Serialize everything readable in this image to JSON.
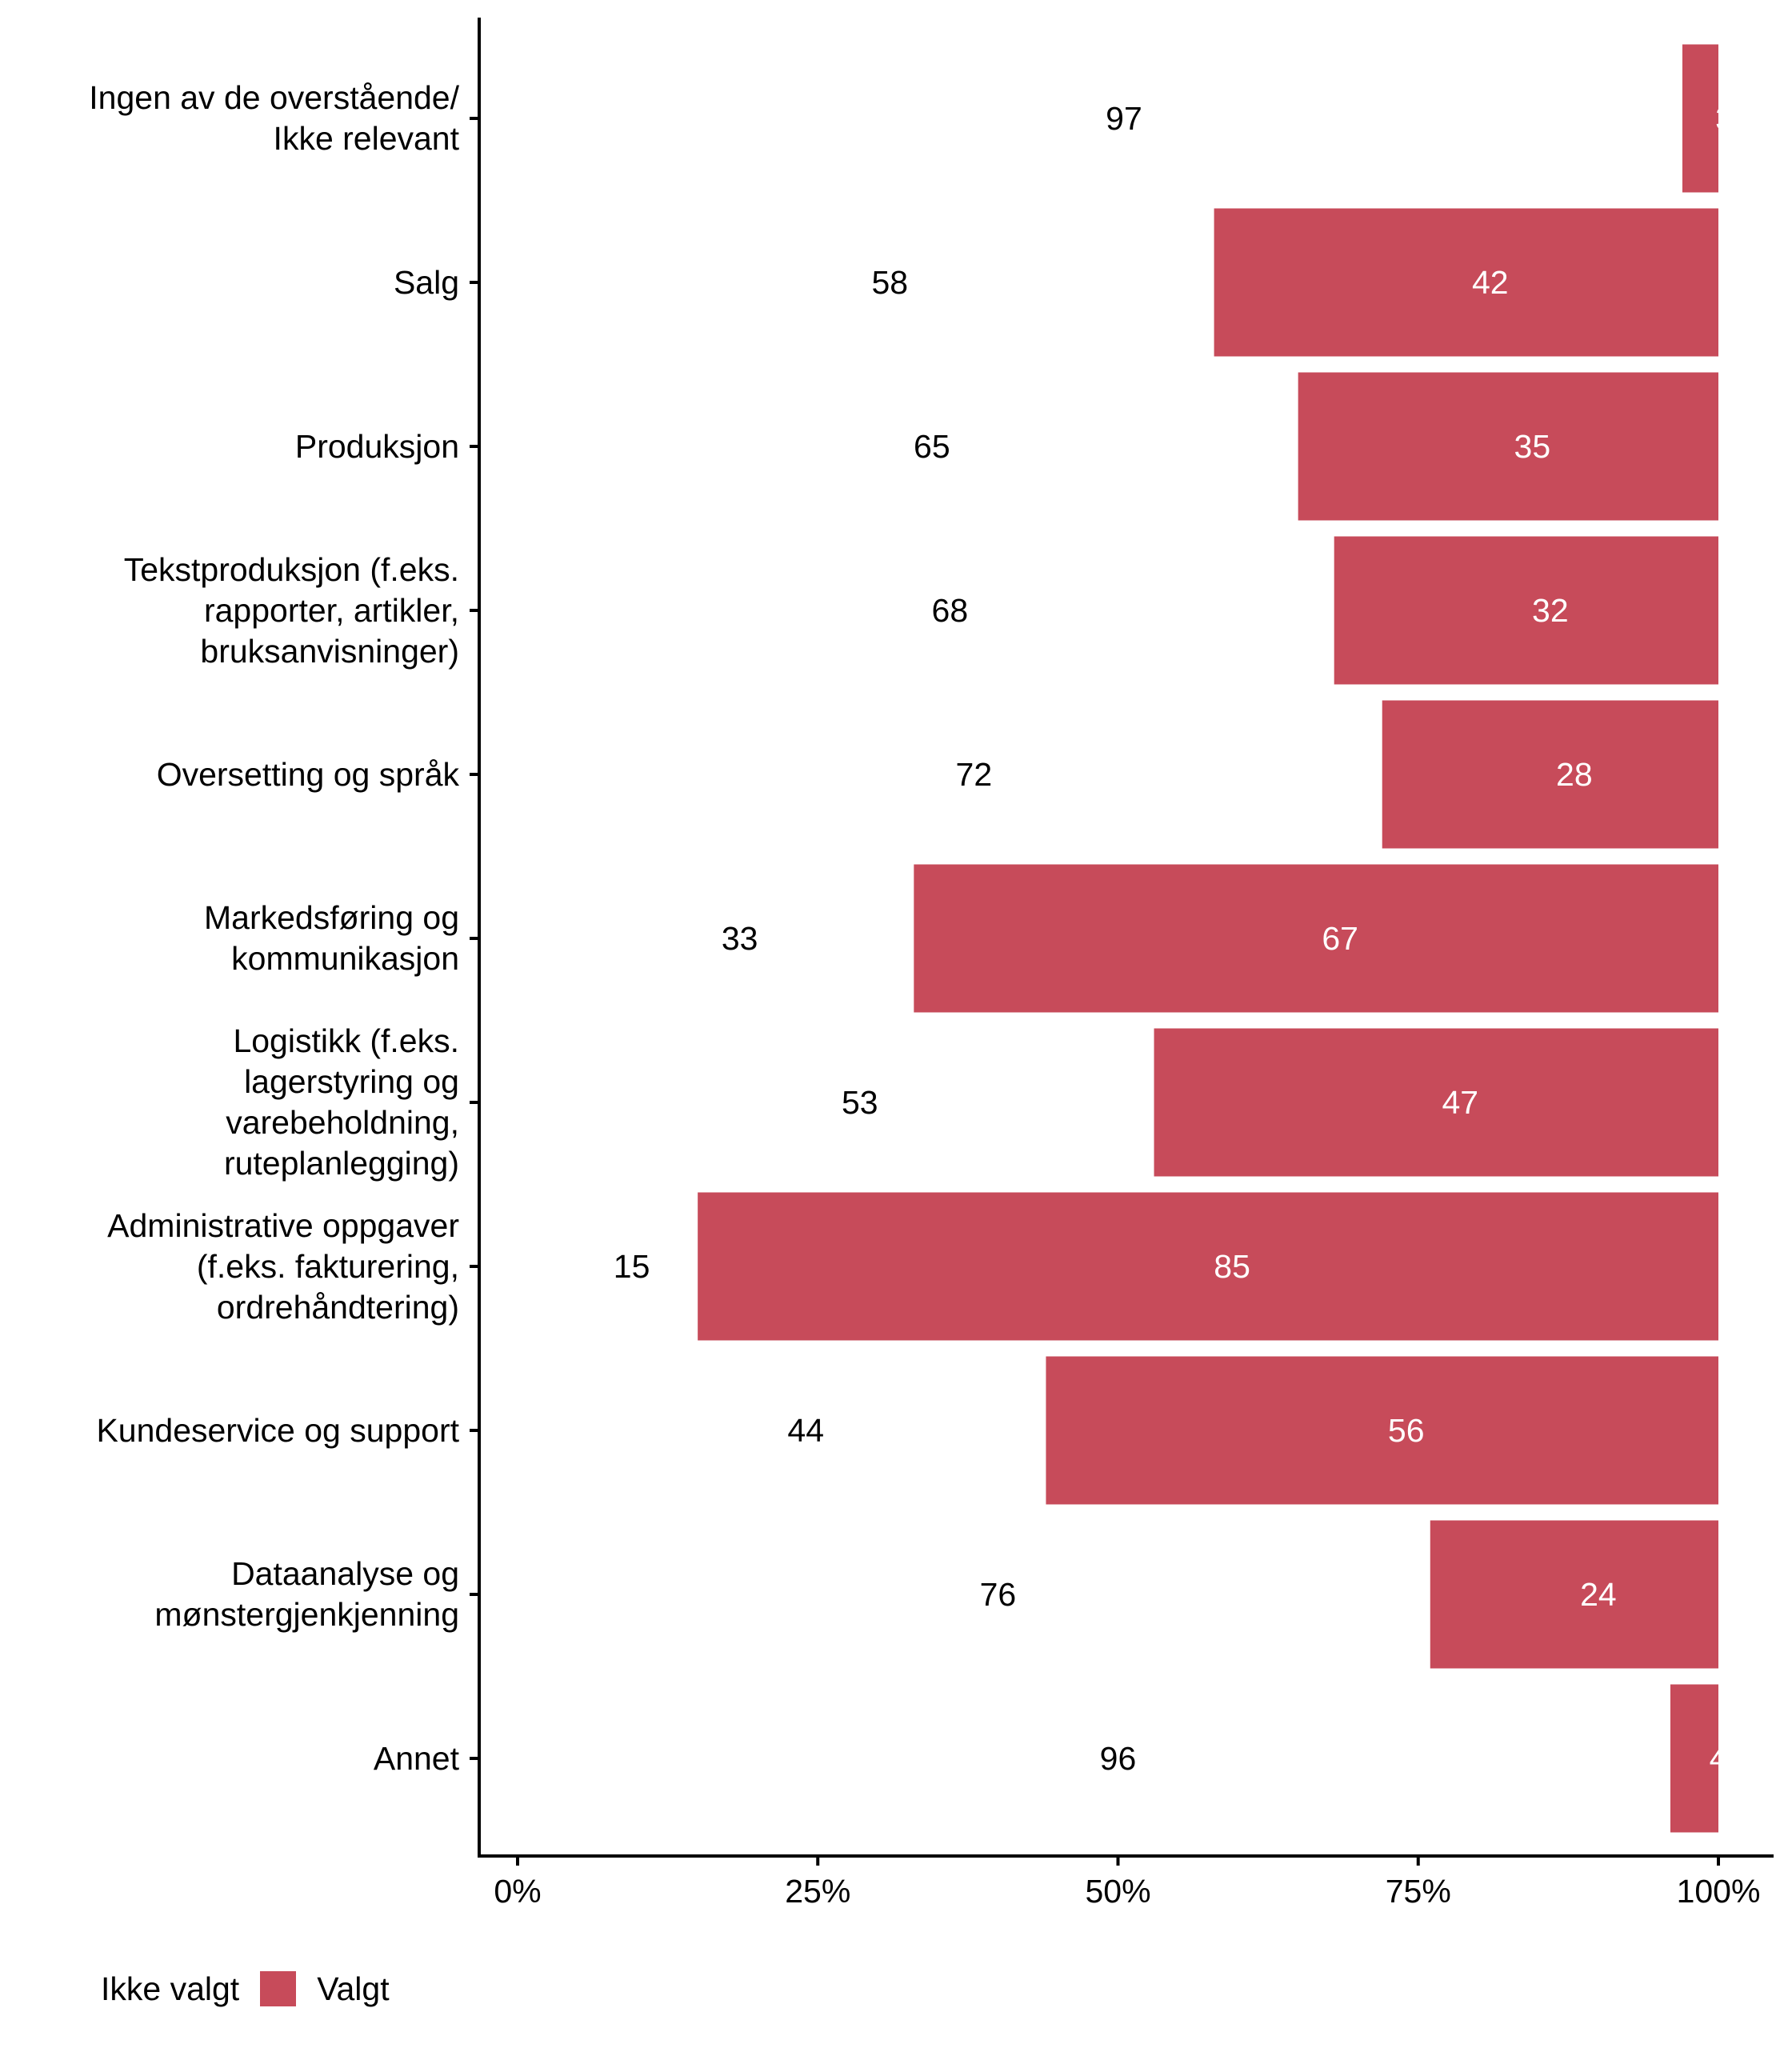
{
  "chart_data": {
    "type": "bar",
    "orientation": "horizontal",
    "stacked": "fill",
    "title": "",
    "xlabel": "",
    "ylabel": "",
    "xlim": [
      0,
      100
    ],
    "grid": false,
    "legend_position": "bottom-left",
    "x_ticks": [
      "0%",
      "25%",
      "50%",
      "75%",
      "100%"
    ],
    "x_tick_values": [
      0,
      25,
      50,
      75,
      100
    ],
    "categories": [
      "Ingen av de overstående/\nIkke relevant",
      "Salg",
      "Produksjon",
      "Tekstproduksjon (f.eks.\nrapporter, artikler,\nbruksanvisninger)",
      "Oversetting og språk",
      "Markedsføring og\nkommunikasjon",
      "Logistikk (f.eks.\nlagerstyring og\nvarebeholdning,\nruteplanlegging)",
      "Administrative oppgaver\n(f.eks. fakturering,\nordrehåndtering)",
      "Kundeservice og support",
      "Dataanalyse og\nmønstergjenkjenning",
      "Annet"
    ],
    "series": [
      {
        "name": "Ikke valgt",
        "color": "#ffffff",
        "label_color": "#000000",
        "values": [
          97,
          58,
          65,
          68,
          72,
          33,
          53,
          15,
          44,
          76,
          96
        ]
      },
      {
        "name": "Valgt",
        "color": "#c74b5a",
        "label_color": "#ffffff",
        "values": [
          3,
          42,
          35,
          32,
          28,
          67,
          47,
          85,
          56,
          24,
          4
        ]
      }
    ]
  },
  "legend": {
    "items": [
      {
        "label": "Ikke valgt",
        "color": "#ffffff"
      },
      {
        "label": "Valgt",
        "color": "#c74b5a"
      }
    ]
  }
}
